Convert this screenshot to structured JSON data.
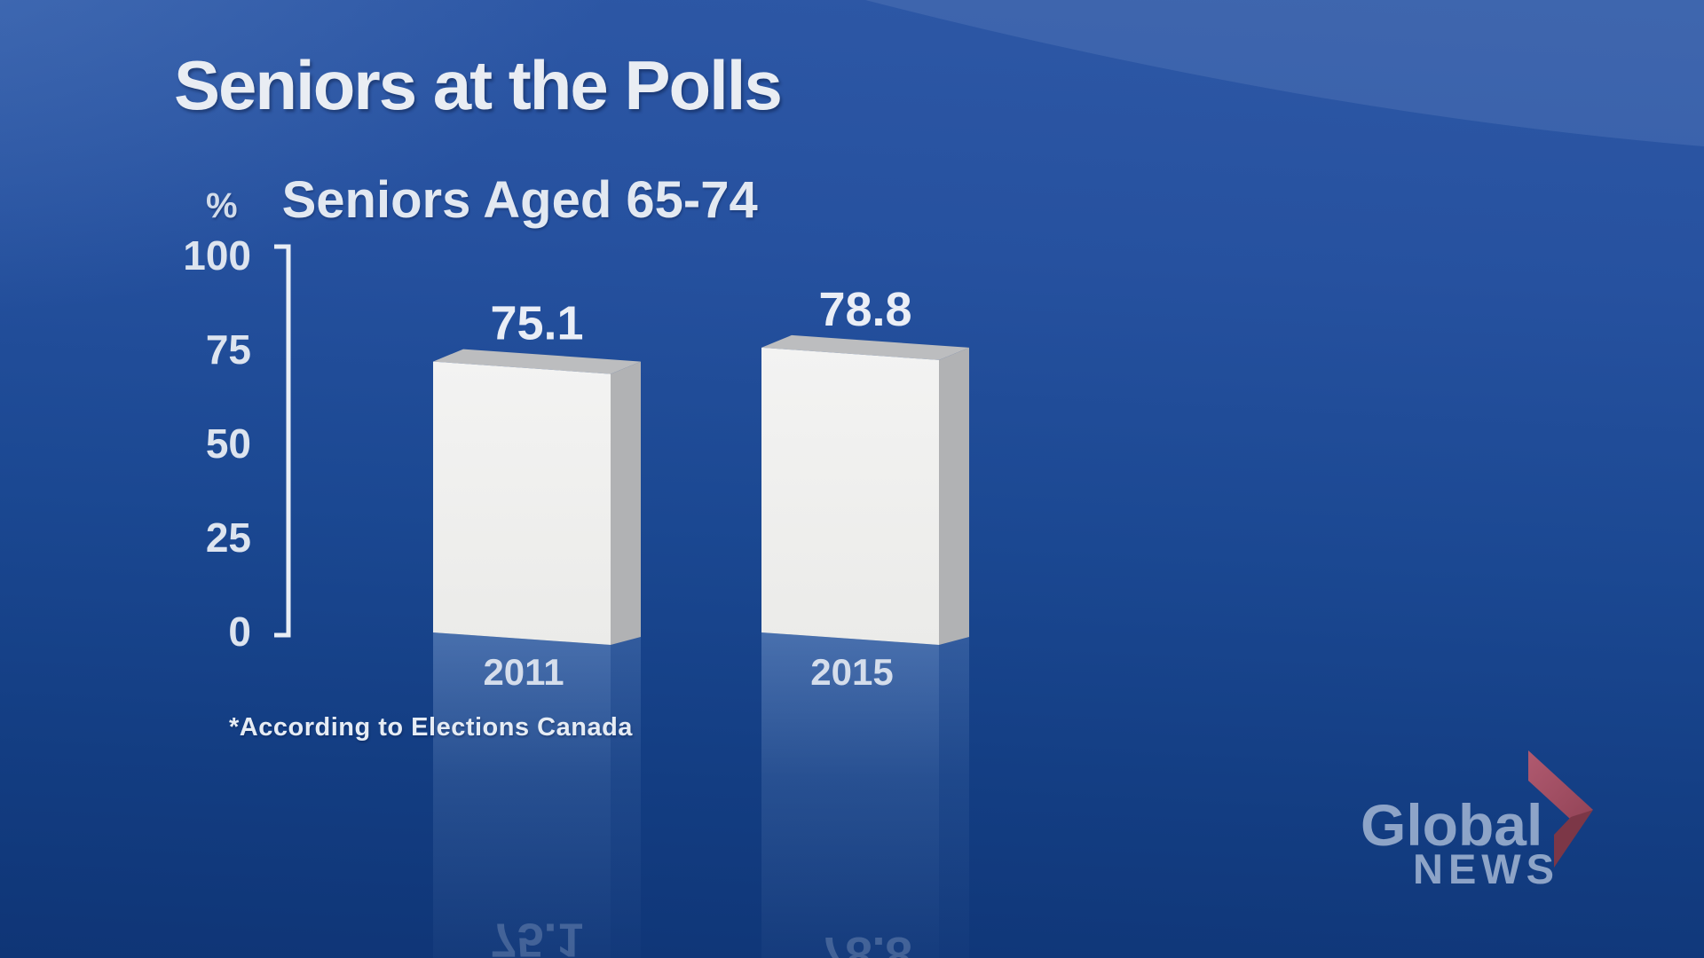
{
  "slide": {
    "title": "Seniors at the Polls",
    "subtitle_unit": "%",
    "subtitle": "Seniors Aged 65-74",
    "footnote": "*According to Elections Canada"
  },
  "chart_data": {
    "type": "bar",
    "title": "Seniors Aged 65-74",
    "unit": "%",
    "categories": [
      "2011",
      "2015"
    ],
    "values": [
      75.1,
      78.8
    ],
    "value_labels": [
      "75.1",
      "78.8"
    ],
    "yticks": [
      100,
      75,
      50,
      25,
      0
    ],
    "ylim": [
      0,
      100
    ],
    "grid": false,
    "legend": "none",
    "source_note": "*According to Elections Canada",
    "style": {
      "bar_front_color": "#f1f1f0",
      "bar_top_color": "#bcbdbf",
      "bar_side_color": "#b1b2b4",
      "axis_color": "#e9eef5",
      "background_color": "#1b4892"
    }
  },
  "branding": {
    "brand_line1": "Global",
    "brand_line2": "NEWS",
    "brand_text_color": "#a6b9d2",
    "chevron_top_color": "#a85468",
    "chevron_bottom_color": "#7c3747"
  }
}
